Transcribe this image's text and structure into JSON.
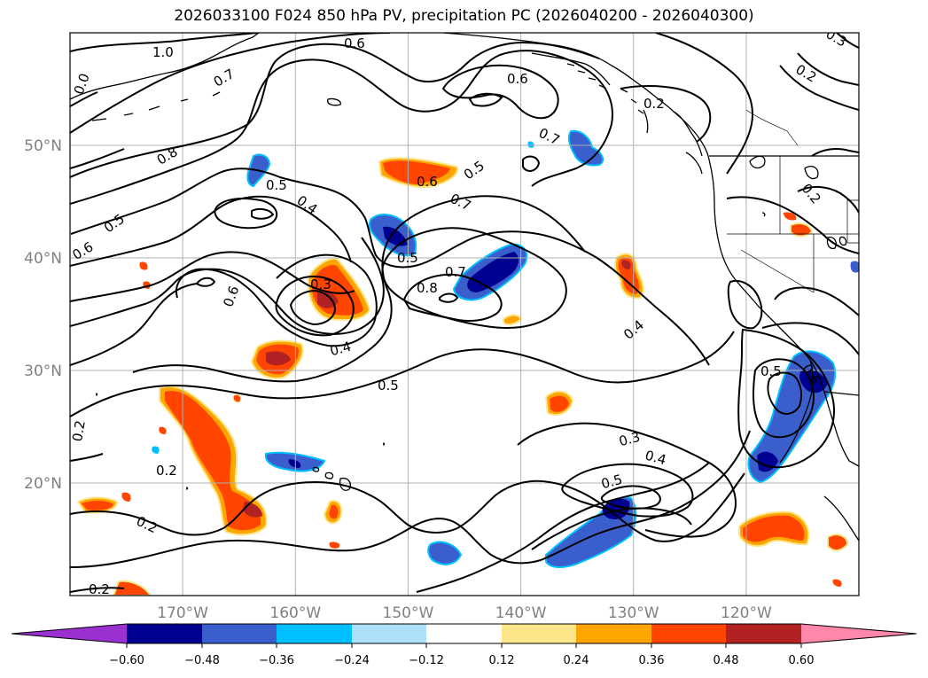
{
  "title": "2026033100 F024 850 hPa PV, precipitation PC (2026040200 - 2026040300)",
  "map": {
    "projection": "Plate Carree",
    "lon_range": [
      -180,
      -110
    ],
    "lat_range": [
      10,
      60
    ],
    "gridlines": true,
    "lon_ticks": [
      "170°W",
      "160°W",
      "150°W",
      "140°W",
      "130°W",
      "120°W"
    ],
    "lat_ticks": [
      "20°N",
      "30°N",
      "40°N",
      "50°N"
    ]
  },
  "contour_labels": [
    "1.0",
    "0.6",
    "0.7",
    "0.6",
    "0.2",
    "0.2",
    "0.7",
    "0.8",
    "0.5",
    "0.6",
    "0.5",
    "0.4",
    "0.7",
    "0.5",
    "0.6",
    "0.5",
    "0.8",
    "0.6",
    "0.7",
    "0.3",
    "0.4",
    "0.4",
    "0.5",
    "0.5",
    "0.3",
    "0.4",
    "0.5",
    "0.2",
    "0.2",
    "0.2",
    "0.0",
    "0.3",
    "0.2",
    "0.6",
    "0.2"
  ],
  "colorbar": {
    "ticks": [
      "−0.60",
      "−0.48",
      "−0.36",
      "−0.24",
      "−0.12",
      "0.12",
      "0.24",
      "0.36",
      "0.48",
      "0.60"
    ],
    "colors": [
      "#9b30d0",
      "#000090",
      "#3a5fcd",
      "#00bfff",
      "#aee0fa",
      "#ffffff",
      "#fde68a",
      "#ffa500",
      "#ff4500",
      "#b22222",
      "#ff88aa"
    ],
    "extend": "both"
  },
  "chart_data": {
    "type": "heatmap",
    "title": "2026033100 F024 850 hPa PV, precipitation PC (2026040200 - 2026040300)",
    "fields": [
      "850 hPa PV (contours)",
      "precipitation PC (shaded)"
    ],
    "levels": [
      -0.6,
      -0.48,
      -0.36,
      -0.24,
      -0.12,
      0.12,
      0.24,
      0.36,
      0.48,
      0.6
    ],
    "xlim": [
      -180,
      -110
    ],
    "ylim": [
      10,
      60
    ],
    "xticks": [
      -170,
      -160,
      -150,
      -140,
      -130,
      -120
    ],
    "yticks": [
      20,
      30,
      40,
      50
    ]
  }
}
